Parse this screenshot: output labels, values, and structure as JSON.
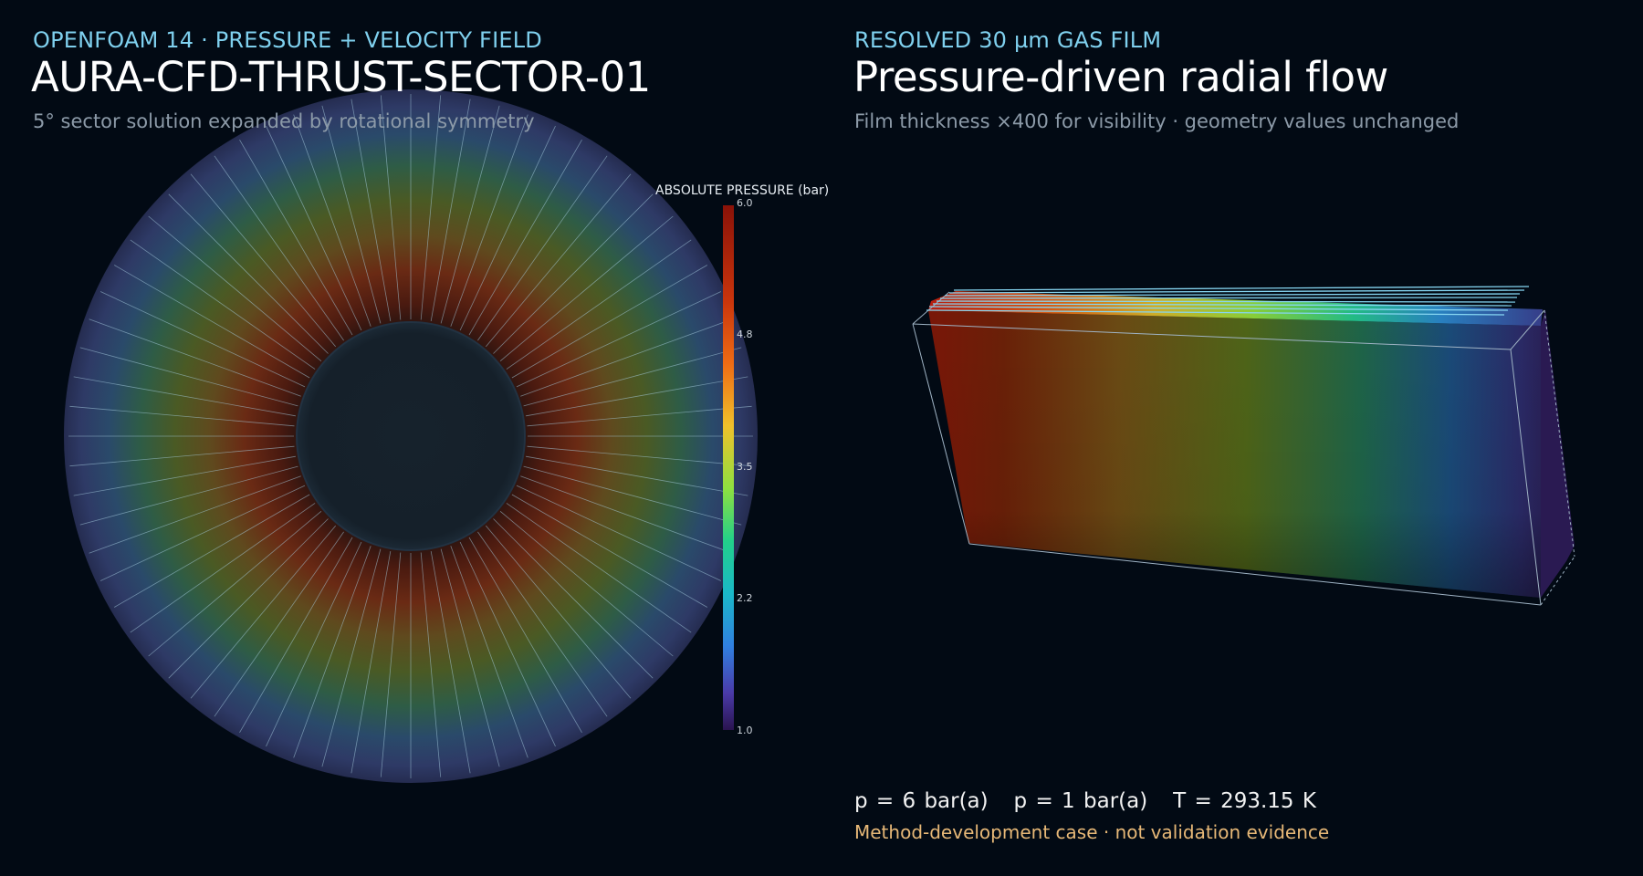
{
  "left_panel": {
    "eyebrow": "OPENFOAM 14 · PRESSURE + VELOCITY FIELD",
    "title": "AURA-CFD-THRUST-SECTOR-01",
    "subtitle": "5° sector solution expanded by rotational symmetry",
    "colorbar": {
      "title": "ABSOLUTE PRESSURE (bar)",
      "ticks": [
        "6.0",
        "4.8",
        "3.5",
        "2.2",
        "1.0"
      ],
      "range": [
        1.0,
        6.0
      ]
    }
  },
  "right_panel": {
    "eyebrow": "RESOLVED 30 µm GAS FILM",
    "title": "Pressure-driven radial flow",
    "subtitle": "Film thickness ×400 for visibility · geometry values unchanged",
    "footer": {
      "conditions": "p = 6 bar(a)   p = 1 bar(a)   T = 293.15 K",
      "note": "Method-development case · not validation evidence"
    }
  },
  "colors": {
    "background": "#020a14",
    "accent": "#7fd0ee",
    "note": "#e7b877",
    "hub": "#15202a"
  }
}
